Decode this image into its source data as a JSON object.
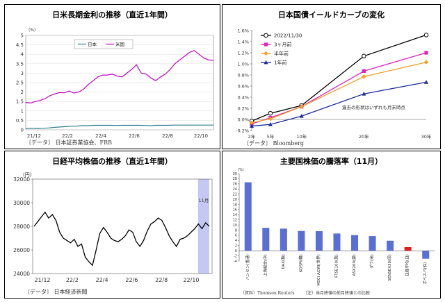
{
  "panels": {
    "p1": {
      "title": "日米長期金利の推移（直近1年間）",
      "source": "〔データ〕 日本証券業協会、FRB"
    },
    "p2": {
      "title": "日本国債イールドカーブの変化",
      "source": "〔データ〕 Bloomberg"
    },
    "p3": {
      "title": "日経平均株価の推移（直近1年間）",
      "source": "〔データ〕 日本経済新聞"
    },
    "p4": {
      "title": "主要国株価の騰落率（11月）",
      "source_left": "（資料）Thomson Reuters",
      "source_right": "（注）当月終値の前月終値との比較"
    }
  },
  "chart_data": [
    {
      "type": "line",
      "unit_label": "(%)",
      "ylim": [
        0,
        5
      ],
      "yticks": [
        "0",
        "0.5",
        "1",
        "1.5",
        "2",
        "2.5",
        "3",
        "3.5",
        "4",
        "4.5",
        "5"
      ],
      "x_tick_labels": [
        "21/12",
        "22/2",
        "22/4",
        "22/6",
        "22/8",
        "22/10"
      ],
      "legend": [
        "日本",
        "米国"
      ],
      "series": [
        {
          "name": "日本",
          "color": "#2e7d8c",
          "values": [
            0.07,
            0.08,
            0.07,
            0.08,
            0.1,
            0.13,
            0.15,
            0.17,
            0.19,
            0.2,
            0.22,
            0.22,
            0.24,
            0.24,
            0.24,
            0.24,
            0.23,
            0.24,
            0.24,
            0.24,
            0.24,
            0.23,
            0.22,
            0.24,
            0.24,
            0.24,
            0.25,
            0.25,
            0.25,
            0.25,
            0.25,
            0.25,
            0.25,
            0.25
          ]
        },
        {
          "name": "米国",
          "color": "#c000c0",
          "values": [
            1.45,
            1.42,
            1.5,
            1.55,
            1.65,
            1.8,
            1.9,
            1.97,
            1.96,
            2.05,
            1.95,
            2.0,
            2.15,
            2.4,
            2.6,
            2.8,
            2.9,
            2.9,
            2.95,
            2.85,
            2.8,
            3.0,
            3.2,
            3.45,
            3.0,
            2.95,
            2.75,
            2.6,
            2.8,
            2.95,
            3.2,
            3.5,
            3.7,
            3.9,
            4.1,
            4.2,
            4.0,
            3.8,
            3.7,
            3.68
          ]
        }
      ]
    },
    {
      "type": "line",
      "ylim": [
        -0.2,
        1.6
      ],
      "yticks": [
        "-0.2%",
        "0.0%",
        "0.2%",
        "0.4%",
        "0.6%",
        "0.8%",
        "1.0%",
        "1.2%",
        "1.4%",
        "1.6%"
      ],
      "categories": [
        "2年",
        "5年",
        "10年",
        "20年",
        "30年"
      ],
      "annotation": "過去の形状はいずれも月末時点",
      "series": [
        {
          "name": "2022/11/30",
          "color": "#000000",
          "marker": "circle-open",
          "values": [
            -0.03,
            0.11,
            0.25,
            1.14,
            1.52
          ]
        },
        {
          "name": "3ヶ月前",
          "color": "#e020c0",
          "marker": "square",
          "values": [
            -0.08,
            0.03,
            0.23,
            0.87,
            1.2
          ]
        },
        {
          "name": "半年前",
          "color": "#f0a020",
          "marker": "diamond",
          "values": [
            -0.06,
            0.01,
            0.23,
            0.77,
            1.03
          ]
        },
        {
          "name": "1年前",
          "color": "#1a2aa0",
          "marker": "triangle",
          "values": [
            -0.12,
            -0.09,
            0.06,
            0.46,
            0.67
          ]
        }
      ]
    },
    {
      "type": "line",
      "unit_label": "(円)",
      "ylim": [
        24000,
        32000
      ],
      "yticks": [
        "24000",
        "26000",
        "28000",
        "30000",
        "32000"
      ],
      "x_tick_labels": [
        "21/12",
        "22/2",
        "22/4",
        "22/6",
        "22/8",
        "22/10"
      ],
      "highlight_label": "11月",
      "series": [
        {
          "name": "日経平均",
          "color": "#000000",
          "values": [
            28000,
            28400,
            28800,
            29200,
            28700,
            29000,
            28500,
            27500,
            27000,
            26800,
            26600,
            26900,
            26300,
            26500,
            25400,
            25000,
            24700,
            26000,
            27400,
            27900,
            27500,
            27000,
            26800,
            26700,
            26900,
            27200,
            27700,
            27500,
            26700,
            26300,
            26800,
            27600,
            28200,
            28400,
            28700,
            28500,
            27900,
            27200,
            26700,
            26300,
            26900,
            27000,
            27200,
            27500,
            27800,
            28200,
            27800,
            28300,
            28000
          ]
        }
      ]
    },
    {
      "type": "bar",
      "unit_label": "(%)",
      "ylim": [
        -4,
        30
      ],
      "yticks": [
        "-4",
        "-2",
        "0",
        "2",
        "4",
        "6",
        "8",
        "10",
        "12",
        "14",
        "16",
        "18",
        "20",
        "22",
        "24",
        "26",
        "28",
        "30"
      ],
      "categories": [
        "ハンセン(香港)",
        "上海総合(中)",
        "DAX(独)",
        "KOSPI(韓)",
        "MSCI ACWI(世界)",
        "FTSE100(英)",
        "ASX200(豪)",
        "ダウ(米)",
        "SENSEX30(印)",
        "日経平均(日)",
        "ボベスパ(伯)"
      ],
      "values": [
        26.6,
        8.9,
        8.6,
        7.7,
        7.6,
        6.7,
        6.1,
        5.7,
        3.9,
        1.4,
        -3.1
      ],
      "colors": [
        "#5a6fd6",
        "#5a6fd6",
        "#5a6fd6",
        "#5a6fd6",
        "#5a6fd6",
        "#5a6fd6",
        "#5a6fd6",
        "#5a6fd6",
        "#5a6fd6",
        "#e02020",
        "#5a6fd6"
      ]
    }
  ]
}
